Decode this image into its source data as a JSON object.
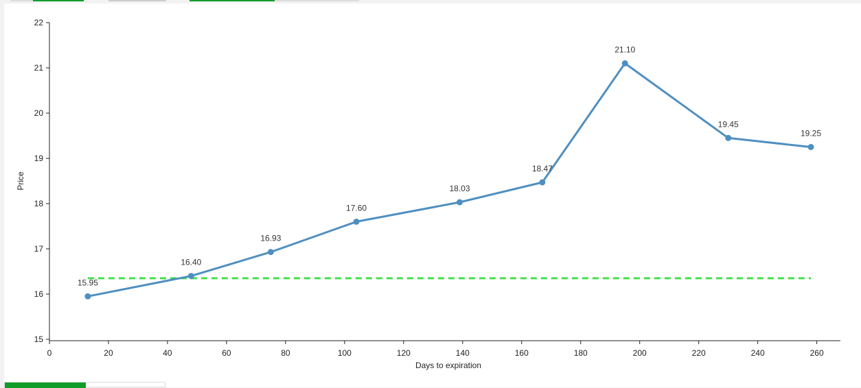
{
  "chart_data": {
    "type": "line",
    "xlabel": "Days to expiration",
    "ylabel": "Price",
    "xlim": [
      0,
      268
    ],
    "ylim": [
      15,
      22
    ],
    "x_ticks": [
      0,
      20,
      40,
      60,
      80,
      100,
      120,
      140,
      160,
      180,
      200,
      220,
      240,
      260
    ],
    "y_ticks": [
      15,
      16,
      17,
      18,
      19,
      20,
      21,
      22
    ],
    "grid": false,
    "series": [
      {
        "color": "#4f8fc0",
        "x": [
          13,
          48,
          75,
          104,
          139,
          167,
          195,
          230,
          258
        ],
        "y": [
          15.95,
          16.4,
          16.93,
          17.6,
          18.03,
          18.47,
          21.1,
          19.45,
          19.25
        ],
        "labels": [
          "15.95",
          "16.40",
          "16.93",
          "17.60",
          "18.03",
          "18.47",
          "21.10",
          "19.45",
          "19.25"
        ]
      }
    ],
    "reference_line": {
      "y": 16.35,
      "x_start": 13,
      "x_end": 258,
      "color": "#44e04a",
      "style": "dashed"
    }
  },
  "ui": {
    "accent": "#0f9d28"
  }
}
